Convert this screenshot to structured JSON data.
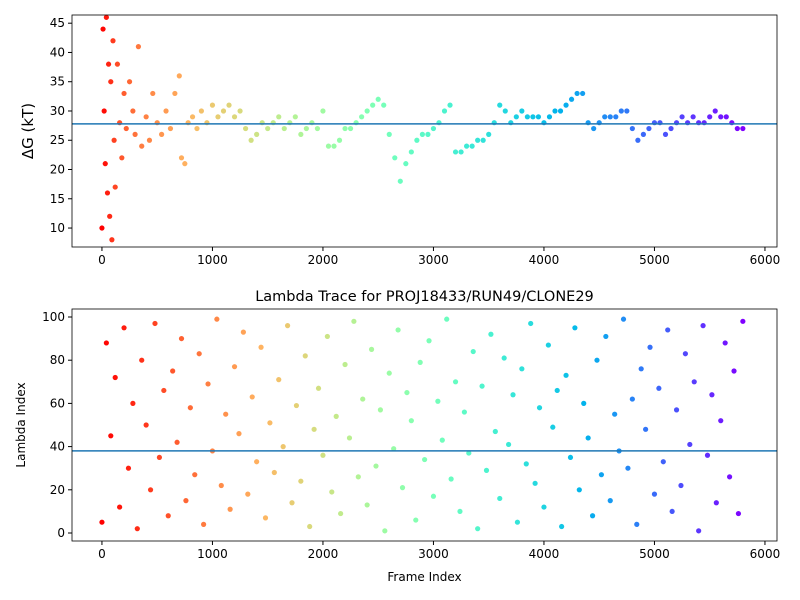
{
  "chart_data": [
    {
      "type": "scatter",
      "ylabel": "ΔG (kT)",
      "colormap": "rainbow_r",
      "hline": 27.8,
      "hline_color": "#1f77b4",
      "xlim": [
        -271,
        6109
      ],
      "xticks": [
        0,
        1000,
        2000,
        3000,
        4000,
        5000,
        6000
      ],
      "ylim": [
        6.76,
        46.4
      ],
      "yticks": [
        10,
        15,
        20,
        25,
        30,
        35,
        40,
        45
      ],
      "x": [
        0,
        10,
        20,
        30,
        40,
        50,
        60,
        70,
        80,
        90,
        100,
        110,
        120,
        140,
        160,
        180,
        200,
        220,
        250,
        280,
        300,
        330,
        360,
        400,
        430,
        460,
        500,
        540,
        580,
        620,
        660,
        700,
        720,
        750,
        780,
        820,
        860,
        900,
        950,
        1000,
        1050,
        1100,
        1150,
        1200,
        1250,
        1300,
        1350,
        1400,
        1450,
        1500,
        1550,
        1600,
        1650,
        1700,
        1750,
        1800,
        1850,
        1900,
        1950,
        2000,
        2050,
        2100,
        2150,
        2200,
        2250,
        2300,
        2350,
        2400,
        2450,
        2500,
        2550,
        2600,
        2650,
        2700,
        2750,
        2800,
        2850,
        2900,
        2950,
        3000,
        3050,
        3100,
        3150,
        3200,
        3250,
        3300,
        3350,
        3400,
        3450,
        3500,
        3550,
        3600,
        3650,
        3700,
        3750,
        3800,
        3850,
        3900,
        3950,
        4000,
        4050,
        4100,
        4150,
        4200,
        4250,
        4300,
        4350,
        4400,
        4450,
        4500,
        4550,
        4600,
        4650,
        4700,
        4750,
        4800,
        4850,
        4900,
        4950,
        5000,
        5050,
        5100,
        5150,
        5200,
        5250,
        5300,
        5350,
        5400,
        5450,
        5500,
        5550,
        5600,
        5650,
        5700,
        5750,
        5800
      ],
      "values": [
        10,
        44,
        30,
        21,
        46,
        16,
        38,
        12,
        35,
        8,
        42,
        25,
        17,
        38,
        28,
        22,
        33,
        27,
        35,
        30,
        26,
        41,
        24,
        29,
        25,
        33,
        28,
        26,
        30,
        27,
        33,
        36,
        22,
        21,
        28,
        29,
        27,
        30,
        28,
        31,
        29,
        30,
        31,
        29,
        30,
        27,
        25,
        26,
        28,
        27,
        28,
        29,
        27,
        28,
        29,
        26,
        27,
        28,
        27,
        30,
        24,
        24,
        25,
        27,
        27,
        28,
        29,
        30,
        31,
        32,
        31,
        26,
        22,
        18,
        21,
        23,
        25,
        26,
        26,
        27,
        28,
        30,
        31,
        23,
        23,
        24,
        24,
        25,
        25,
        26,
        28,
        31,
        30,
        28,
        29,
        30,
        29,
        29,
        29,
        28,
        29,
        30,
        30,
        31,
        32,
        33,
        33,
        28,
        27,
        28,
        29,
        29,
        29,
        30,
        30,
        27,
        25,
        26,
        27,
        28,
        28,
        26,
        27,
        28,
        29,
        28,
        29,
        28,
        28,
        29,
        30,
        29,
        29,
        28,
        27,
        27
      ]
    },
    {
      "type": "scatter",
      "title": "Lambda Trace for PROJ18433/RUN49/CLONE29",
      "xlabel": "Frame Index",
      "ylabel": "Lambda Index",
      "colormap": "rainbow_r",
      "hline": 38,
      "hline_color": "#1f77b4",
      "xlim": [
        -271,
        6109
      ],
      "xticks": [
        0,
        1000,
        2000,
        3000,
        4000,
        5000,
        6000
      ],
      "ylim": [
        -3.7,
        103.7
      ],
      "yticks": [
        0,
        20,
        40,
        60,
        80,
        100
      ],
      "x": [
        0,
        40,
        80,
        120,
        160,
        200,
        240,
        280,
        320,
        360,
        400,
        440,
        480,
        520,
        560,
        600,
        640,
        680,
        720,
        760,
        800,
        840,
        880,
        920,
        960,
        1000,
        1040,
        1080,
        1120,
        1160,
        1200,
        1240,
        1280,
        1320,
        1360,
        1400,
        1440,
        1480,
        1520,
        1560,
        1600,
        1640,
        1680,
        1720,
        1760,
        1800,
        1840,
        1880,
        1920,
        1960,
        2000,
        2040,
        2080,
        2120,
        2160,
        2200,
        2240,
        2280,
        2320,
        2360,
        2400,
        2440,
        2480,
        2520,
        2560,
        2600,
        2640,
        2680,
        2720,
        2760,
        2800,
        2840,
        2880,
        2920,
        2960,
        3000,
        3040,
        3080,
        3120,
        3160,
        3200,
        3240,
        3280,
        3320,
        3360,
        3400,
        3440,
        3480,
        3520,
        3560,
        3600,
        3640,
        3680,
        3720,
        3760,
        3800,
        3840,
        3880,
        3920,
        3960,
        4000,
        4040,
        4080,
        4120,
        4160,
        4200,
        4240,
        4280,
        4320,
        4360,
        4400,
        4440,
        4480,
        4520,
        4560,
        4600,
        4640,
        4680,
        4720,
        4760,
        4800,
        4840,
        4880,
        4920,
        4960,
        5000,
        5040,
        5080,
        5120,
        5160,
        5200,
        5240,
        5280,
        5320,
        5360,
        5400,
        5440,
        5480,
        5520,
        5560,
        5600,
        5640,
        5680,
        5720,
        5760,
        5800
      ],
      "values": [
        5,
        88,
        45,
        72,
        12,
        95,
        30,
        60,
        2,
        80,
        50,
        20,
        97,
        35,
        66,
        8,
        75,
        42,
        90,
        15,
        58,
        27,
        83,
        4,
        69,
        38,
        99,
        22,
        55,
        11,
        77,
        46,
        93,
        18,
        63,
        33,
        86,
        7,
        51,
        28,
        71,
        40,
        96,
        14,
        59,
        24,
        82,
        3,
        48,
        67,
        36,
        91,
        19,
        54,
        9,
        78,
        44,
        98,
        26,
        62,
        13,
        85,
        31,
        57,
        1,
        74,
        39,
        94,
        21,
        65,
        52,
        6,
        79,
        34,
        89,
        17,
        61,
        43,
        99,
        25,
        70,
        10,
        56,
        37,
        84,
        2,
        68,
        29,
        92,
        47,
        16,
        81,
        41,
        64,
        5,
        76,
        32,
        97,
        23,
        58,
        12,
        87,
        49,
        66,
        3,
        73,
        35,
        95,
        20,
        60,
        44,
        8,
        80,
        27,
        91,
        15,
        55,
        38,
        99,
        30,
        62,
        4,
        76,
        48,
        86,
        18,
        67,
        33,
        94,
        10,
        57,
        22,
        83,
        41,
        70,
        1,
        96,
        36,
        64,
        14,
        52,
        88,
        26,
        75,
        9,
        98
      ]
    }
  ]
}
